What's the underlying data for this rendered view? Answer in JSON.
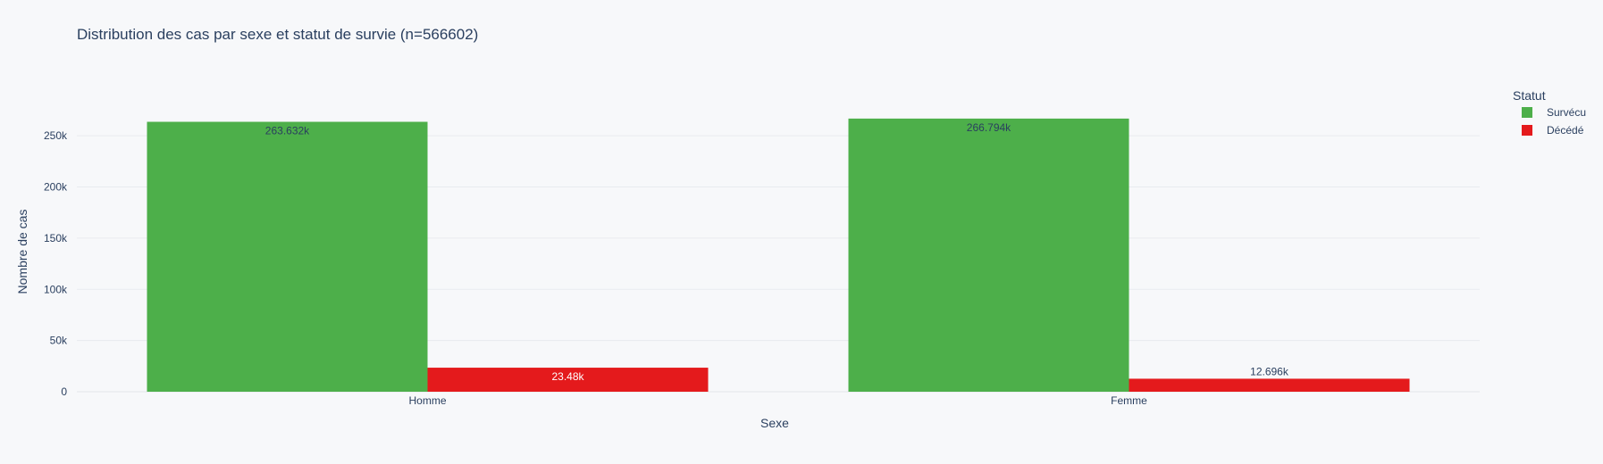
{
  "chart_data": {
    "type": "bar",
    "title": "Distribution des cas par sexe et statut de survie (n=566602)",
    "xlabel": "Sexe",
    "ylabel": "Nombre de cas",
    "categories": [
      "Homme",
      "Femme"
    ],
    "ylim": [
      0,
      285000
    ],
    "yticks": [
      0,
      50000,
      100000,
      150000,
      200000,
      250000
    ],
    "ytick_labels": [
      "0",
      "50k",
      "100k",
      "150k",
      "200k",
      "250k"
    ],
    "grid": true,
    "barmode": "group",
    "legend": {
      "title": "Statut",
      "position": "top-right"
    },
    "series": [
      {
        "name": "Survécu",
        "color": "#4daf4a",
        "values": [
          263632,
          266794
        ],
        "labels": [
          "263.632k",
          "266.794k"
        ]
      },
      {
        "name": "Décédé",
        "color": "#e41a1c",
        "values": [
          23480,
          12696
        ],
        "labels": [
          "23.48k",
          "12.696k"
        ]
      }
    ]
  }
}
